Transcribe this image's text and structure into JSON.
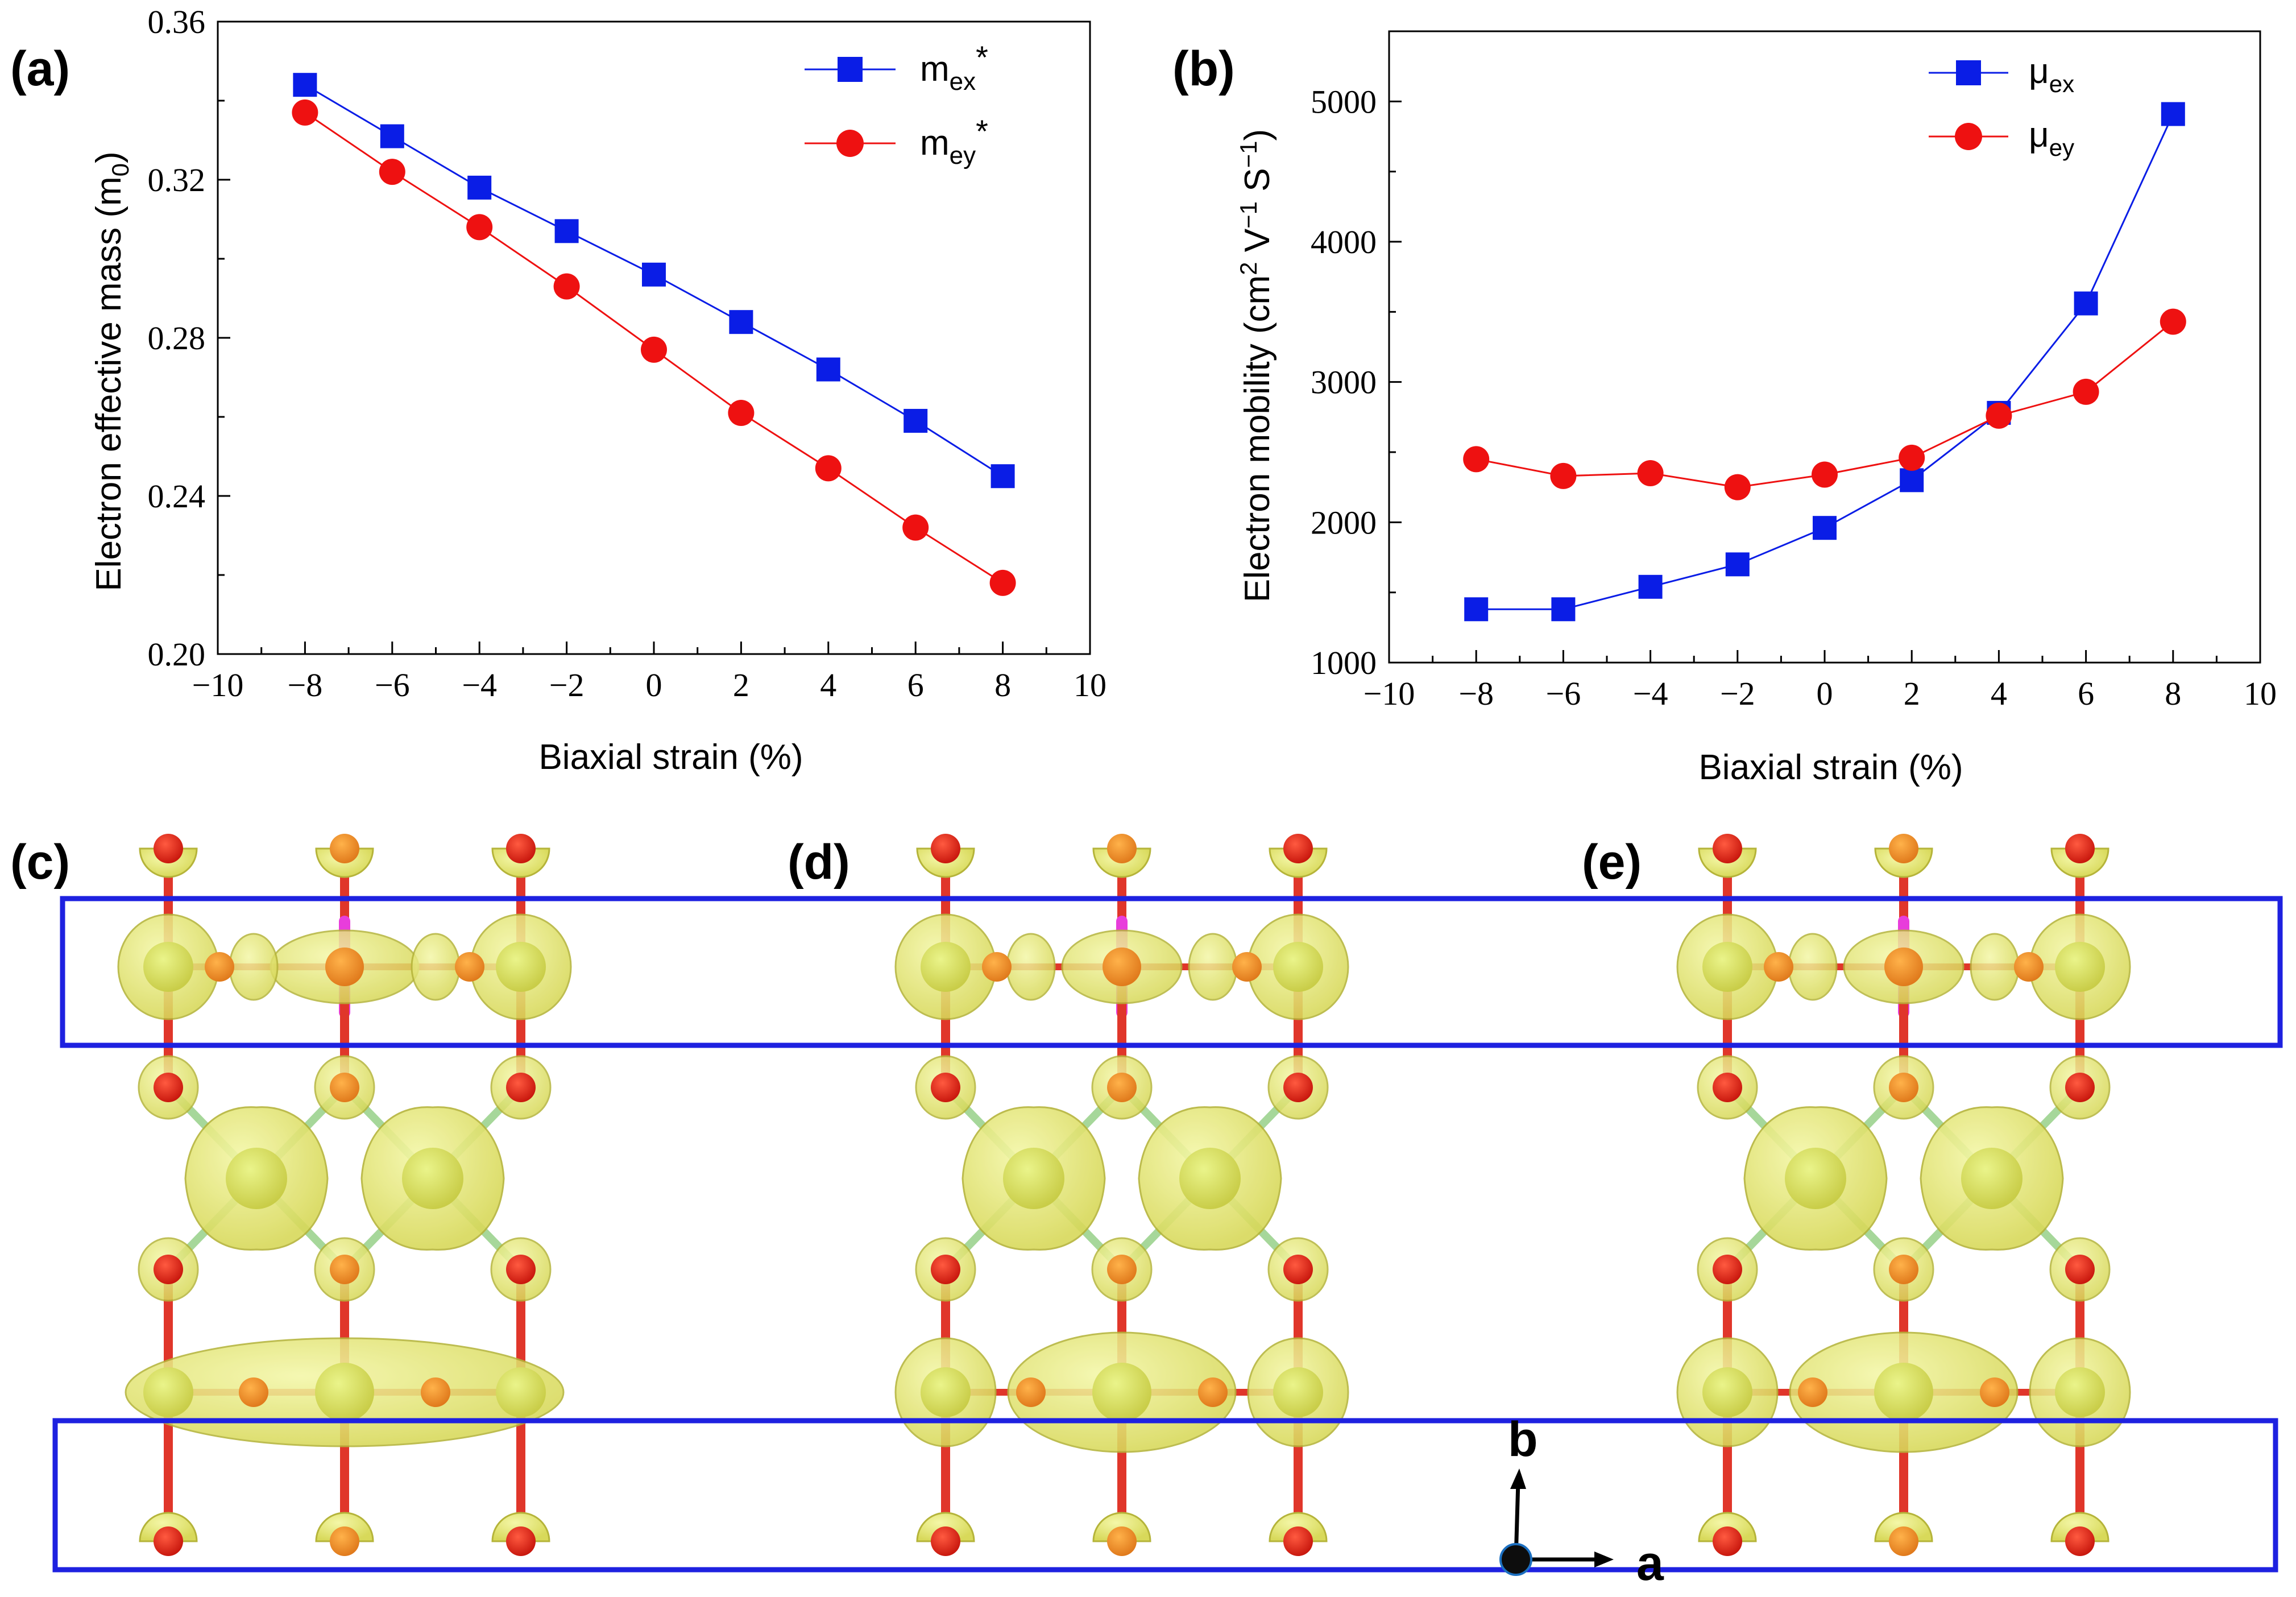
{
  "panels": {
    "a": "(a)",
    "b": "(b)",
    "c": "(c)",
    "d": "(d)",
    "e": "(e)"
  },
  "axes_glyph": {
    "b": "b",
    "a": "a"
  },
  "colors": {
    "series_x": "#0a1de6",
    "series_y": "#ee1111",
    "box": "#1e21e0",
    "lobe": "#e4e86e",
    "lobe_edge": "#b5b43a",
    "atom_orange": "#ee8a2a",
    "atom_red": "#e2231a",
    "bond_green": "#a6d79a",
    "bond_red": "#e0362a",
    "bond_magenta": "#e83ddb"
  },
  "chart_data": [
    {
      "type": "line",
      "title": "",
      "xlabel": "Biaxial strain (%)",
      "ylabel": {
        "main": "Electron effective mass (m",
        "sub": "0",
        "tail": ")"
      },
      "xlim": [
        -10,
        10
      ],
      "ylim": [
        0.2,
        0.36
      ],
      "xticks": [
        -10,
        -8,
        -6,
        -4,
        -2,
        0,
        2,
        4,
        6,
        8,
        10
      ],
      "xtick_labels": [
        "−10",
        "−8",
        "−6",
        "−4",
        "−2",
        "0",
        "2",
        "4",
        "6",
        "8",
        "10"
      ],
      "yticks": [
        0.2,
        0.24,
        0.28,
        0.32,
        0.36
      ],
      "ytick_labels": [
        "0.20",
        "0.24",
        "0.28",
        "0.32",
        "0.36"
      ],
      "x": [
        -8,
        -6,
        -4,
        -2,
        0,
        2,
        4,
        6,
        8
      ],
      "series": [
        {
          "name": "m",
          "sub": "ex",
          "sup": "*",
          "marker": "square",
          "values": [
            0.344,
            0.331,
            0.318,
            0.307,
            0.296,
            0.284,
            0.272,
            0.259,
            0.245
          ]
        },
        {
          "name": "m",
          "sub": "ey",
          "sup": "*",
          "marker": "circle",
          "values": [
            0.337,
            0.322,
            0.308,
            0.293,
            0.277,
            0.261,
            0.247,
            0.232,
            0.218
          ]
        }
      ],
      "legend_position": "top-right"
    },
    {
      "type": "line",
      "title": "",
      "xlabel": "Biaxial strain (%)",
      "ylabel": {
        "main": "Electron mobility (cm",
        "s1": "2",
        "mid1": " V",
        "s2": "−1",
        "mid2": " S",
        "s3": "−1",
        "tail": ")"
      },
      "xlim": [
        -10,
        10
      ],
      "ylim": [
        1000,
        5500
      ],
      "xticks": [
        -10,
        -8,
        -6,
        -4,
        -2,
        0,
        2,
        4,
        6,
        8,
        10
      ],
      "xtick_labels": [
        "−10",
        "−8",
        "−6",
        "−4",
        "−2",
        "0",
        "2",
        "4",
        "6",
        "8",
        "10"
      ],
      "yticks": [
        1000,
        2000,
        3000,
        4000,
        5000
      ],
      "ytick_labels": [
        "1000",
        "2000",
        "3000",
        "4000",
        "5000"
      ],
      "x": [
        -8,
        -6,
        -4,
        -2,
        0,
        2,
        4,
        6,
        8
      ],
      "series": [
        {
          "name": "μ",
          "sub": "ex",
          "marker": "square",
          "values": [
            1380,
            1380,
            1540,
            1700,
            1960,
            2300,
            2780,
            3560,
            4910
          ]
        },
        {
          "name": "μ",
          "sub": "ey",
          "marker": "circle",
          "values": [
            2450,
            2330,
            2350,
            2250,
            2340,
            2460,
            2760,
            2930,
            3430
          ]
        }
      ],
      "legend_position": "top-right"
    }
  ]
}
